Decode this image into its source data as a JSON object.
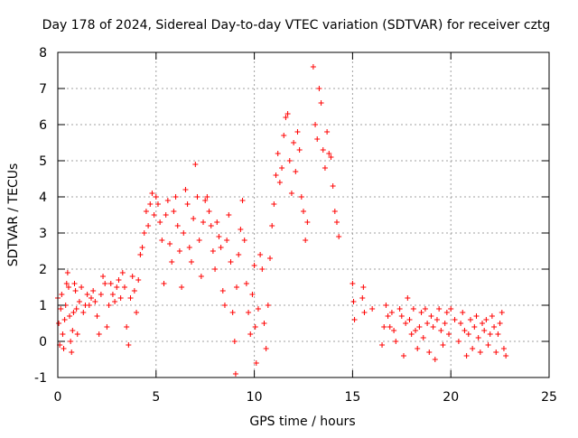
{
  "chart_data": {
    "type": "scatter",
    "title": "Day 178 of 2024, Sidereal Day-to-day VTEC variation (SDTVAR) for receiver cztg",
    "xlabel": "GPS time / hours",
    "ylabel": "SDTVAR / TECUs",
    "xlim": [
      0,
      25
    ],
    "ylim": [
      -1,
      8
    ],
    "xticks": [
      "0",
      "5",
      "10",
      "15",
      "20",
      "25"
    ],
    "yticks": [
      "-1",
      "0",
      "1",
      "2",
      "3",
      "4",
      "5",
      "6",
      "7",
      "8"
    ],
    "grid": true,
    "marker": "plus",
    "color": "#ff0000",
    "series": [
      {
        "name": "SDTVAR",
        "x": [
          0.0,
          0.05,
          0.1,
          0.15,
          0.2,
          0.25,
          0.3,
          0.35,
          0.4,
          0.45,
          0.5,
          0.55,
          0.6,
          0.65,
          0.7,
          0.75,
          0.8,
          0.85,
          0.9,
          0.95,
          1.0,
          1.1,
          1.2,
          1.3,
          1.4,
          1.5,
          1.6,
          1.7,
          1.8,
          1.9,
          2.0,
          2.1,
          2.2,
          2.3,
          2.4,
          2.5,
          2.6,
          2.7,
          2.8,
          2.9,
          3.0,
          3.1,
          3.2,
          3.3,
          3.4,
          3.5,
          3.6,
          3.7,
          3.8,
          3.9,
          4.0,
          4.1,
          4.2,
          4.3,
          4.4,
          4.5,
          4.6,
          4.7,
          4.8,
          4.9,
          5.0,
          5.1,
          5.2,
          5.3,
          5.4,
          5.5,
          5.6,
          5.7,
          5.8,
          5.9,
          6.0,
          6.1,
          6.2,
          6.3,
          6.4,
          6.5,
          6.6,
          6.7,
          6.8,
          6.9,
          7.0,
          7.1,
          7.2,
          7.3,
          7.4,
          7.5,
          7.6,
          7.7,
          7.8,
          7.9,
          8.0,
          8.1,
          8.2,
          8.3,
          8.4,
          8.5,
          8.6,
          8.7,
          8.8,
          8.9,
          9.0,
          9.05,
          9.1,
          9.2,
          9.3,
          9.4,
          9.5,
          9.6,
          9.7,
          9.8,
          9.9,
          10.0,
          10.05,
          10.1,
          10.2,
          10.3,
          10.4,
          10.5,
          10.6,
          10.7,
          10.8,
          10.9,
          11.0,
          11.1,
          11.2,
          11.3,
          11.4,
          11.5,
          11.6,
          11.7,
          11.8,
          11.9,
          12.0,
          12.1,
          12.2,
          12.3,
          12.4,
          12.5,
          12.6,
          12.7,
          13.0,
          13.1,
          13.2,
          13.3,
          13.4,
          13.5,
          13.6,
          13.7,
          13.8,
          13.9,
          14.0,
          14.1,
          14.2,
          14.3,
          15.0,
          15.05,
          15.1,
          15.5,
          15.55,
          15.6,
          16.0,
          16.5,
          16.6,
          16.7,
          16.8,
          16.9,
          17.0,
          17.1,
          17.2,
          17.4,
          17.5,
          17.6,
          17.7,
          17.8,
          17.9,
          18.0,
          18.1,
          18.2,
          18.3,
          18.4,
          18.5,
          18.6,
          18.7,
          18.8,
          18.9,
          19.0,
          19.1,
          19.2,
          19.3,
          19.4,
          19.5,
          19.6,
          19.7,
          19.8,
          19.9,
          20.0,
          20.2,
          20.4,
          20.5,
          20.6,
          20.7,
          20.8,
          20.9,
          21.0,
          21.1,
          21.2,
          21.3,
          21.4,
          21.5,
          21.6,
          21.7,
          21.8,
          21.9,
          22.0,
          22.1,
          22.2,
          22.3,
          22.4,
          22.5,
          22.6,
          22.7,
          22.8
        ],
        "y": [
          1.2,
          0.5,
          -0.1,
          0.9,
          1.3,
          0.2,
          -0.2,
          0.6,
          1.0,
          1.6,
          1.9,
          1.5,
          0.7,
          0.0,
          -0.3,
          0.3,
          0.8,
          1.6,
          1.4,
          0.9,
          0.2,
          1.1,
          1.5,
          0.8,
          1.0,
          1.3,
          1.0,
          1.2,
          1.4,
          1.1,
          0.7,
          0.2,
          1.3,
          1.8,
          1.6,
          0.4,
          1.0,
          1.6,
          1.3,
          1.1,
          1.5,
          1.7,
          1.2,
          1.9,
          1.5,
          0.4,
          -0.1,
          1.2,
          1.8,
          1.4,
          0.8,
          1.7,
          2.4,
          2.6,
          3.0,
          3.6,
          3.2,
          3.8,
          4.1,
          3.5,
          4.0,
          3.8,
          3.3,
          2.8,
          1.6,
          3.5,
          3.9,
          2.7,
          2.2,
          3.6,
          4.0,
          3.2,
          2.5,
          1.5,
          3.0,
          4.2,
          3.8,
          2.6,
          2.2,
          3.4,
          4.9,
          4.0,
          2.8,
          1.8,
          3.3,
          3.9,
          4.0,
          3.6,
          3.2,
          2.5,
          2.0,
          3.3,
          2.9,
          2.6,
          1.4,
          1.0,
          2.8,
          3.5,
          2.2,
          0.8,
          0.0,
          -0.9,
          1.5,
          2.4,
          3.1,
          3.9,
          2.8,
          1.6,
          0.8,
          0.2,
          1.3,
          2.1,
          0.4,
          -0.6,
          0.9,
          2.4,
          2.0,
          0.5,
          -0.2,
          1.0,
          2.3,
          3.2,
          3.8,
          4.6,
          5.2,
          4.4,
          4.8,
          5.7,
          6.2,
          6.3,
          5.0,
          4.1,
          5.5,
          4.7,
          5.8,
          5.3,
          4.0,
          3.6,
          2.8,
          3.3,
          7.6,
          6.0,
          5.6,
          7.0,
          6.6,
          5.3,
          4.8,
          5.8,
          5.2,
          5.1,
          4.3,
          3.6,
          3.3,
          2.9,
          1.6,
          1.1,
          0.6,
          1.2,
          1.5,
          0.8,
          0.9,
          -0.1,
          0.4,
          1.0,
          0.7,
          0.4,
          0.8,
          0.3,
          0.0,
          0.9,
          0.7,
          -0.4,
          0.5,
          1.2,
          0.6,
          0.2,
          0.9,
          0.3,
          -0.2,
          0.4,
          0.8,
          0.1,
          0.9,
          0.5,
          -0.3,
          0.7,
          0.4,
          -0.5,
          0.6,
          0.9,
          0.3,
          -0.1,
          0.5,
          0.8,
          0.2,
          0.9,
          0.6,
          0.0,
          0.5,
          0.8,
          0.3,
          -0.4,
          0.2,
          0.6,
          -0.2,
          0.4,
          0.7,
          0.1,
          -0.3,
          0.5,
          0.3,
          0.6,
          -0.1,
          0.2,
          0.7,
          0.4,
          -0.3,
          0.2,
          0.5,
          0.8,
          -0.2,
          -0.4
        ]
      }
    ]
  }
}
